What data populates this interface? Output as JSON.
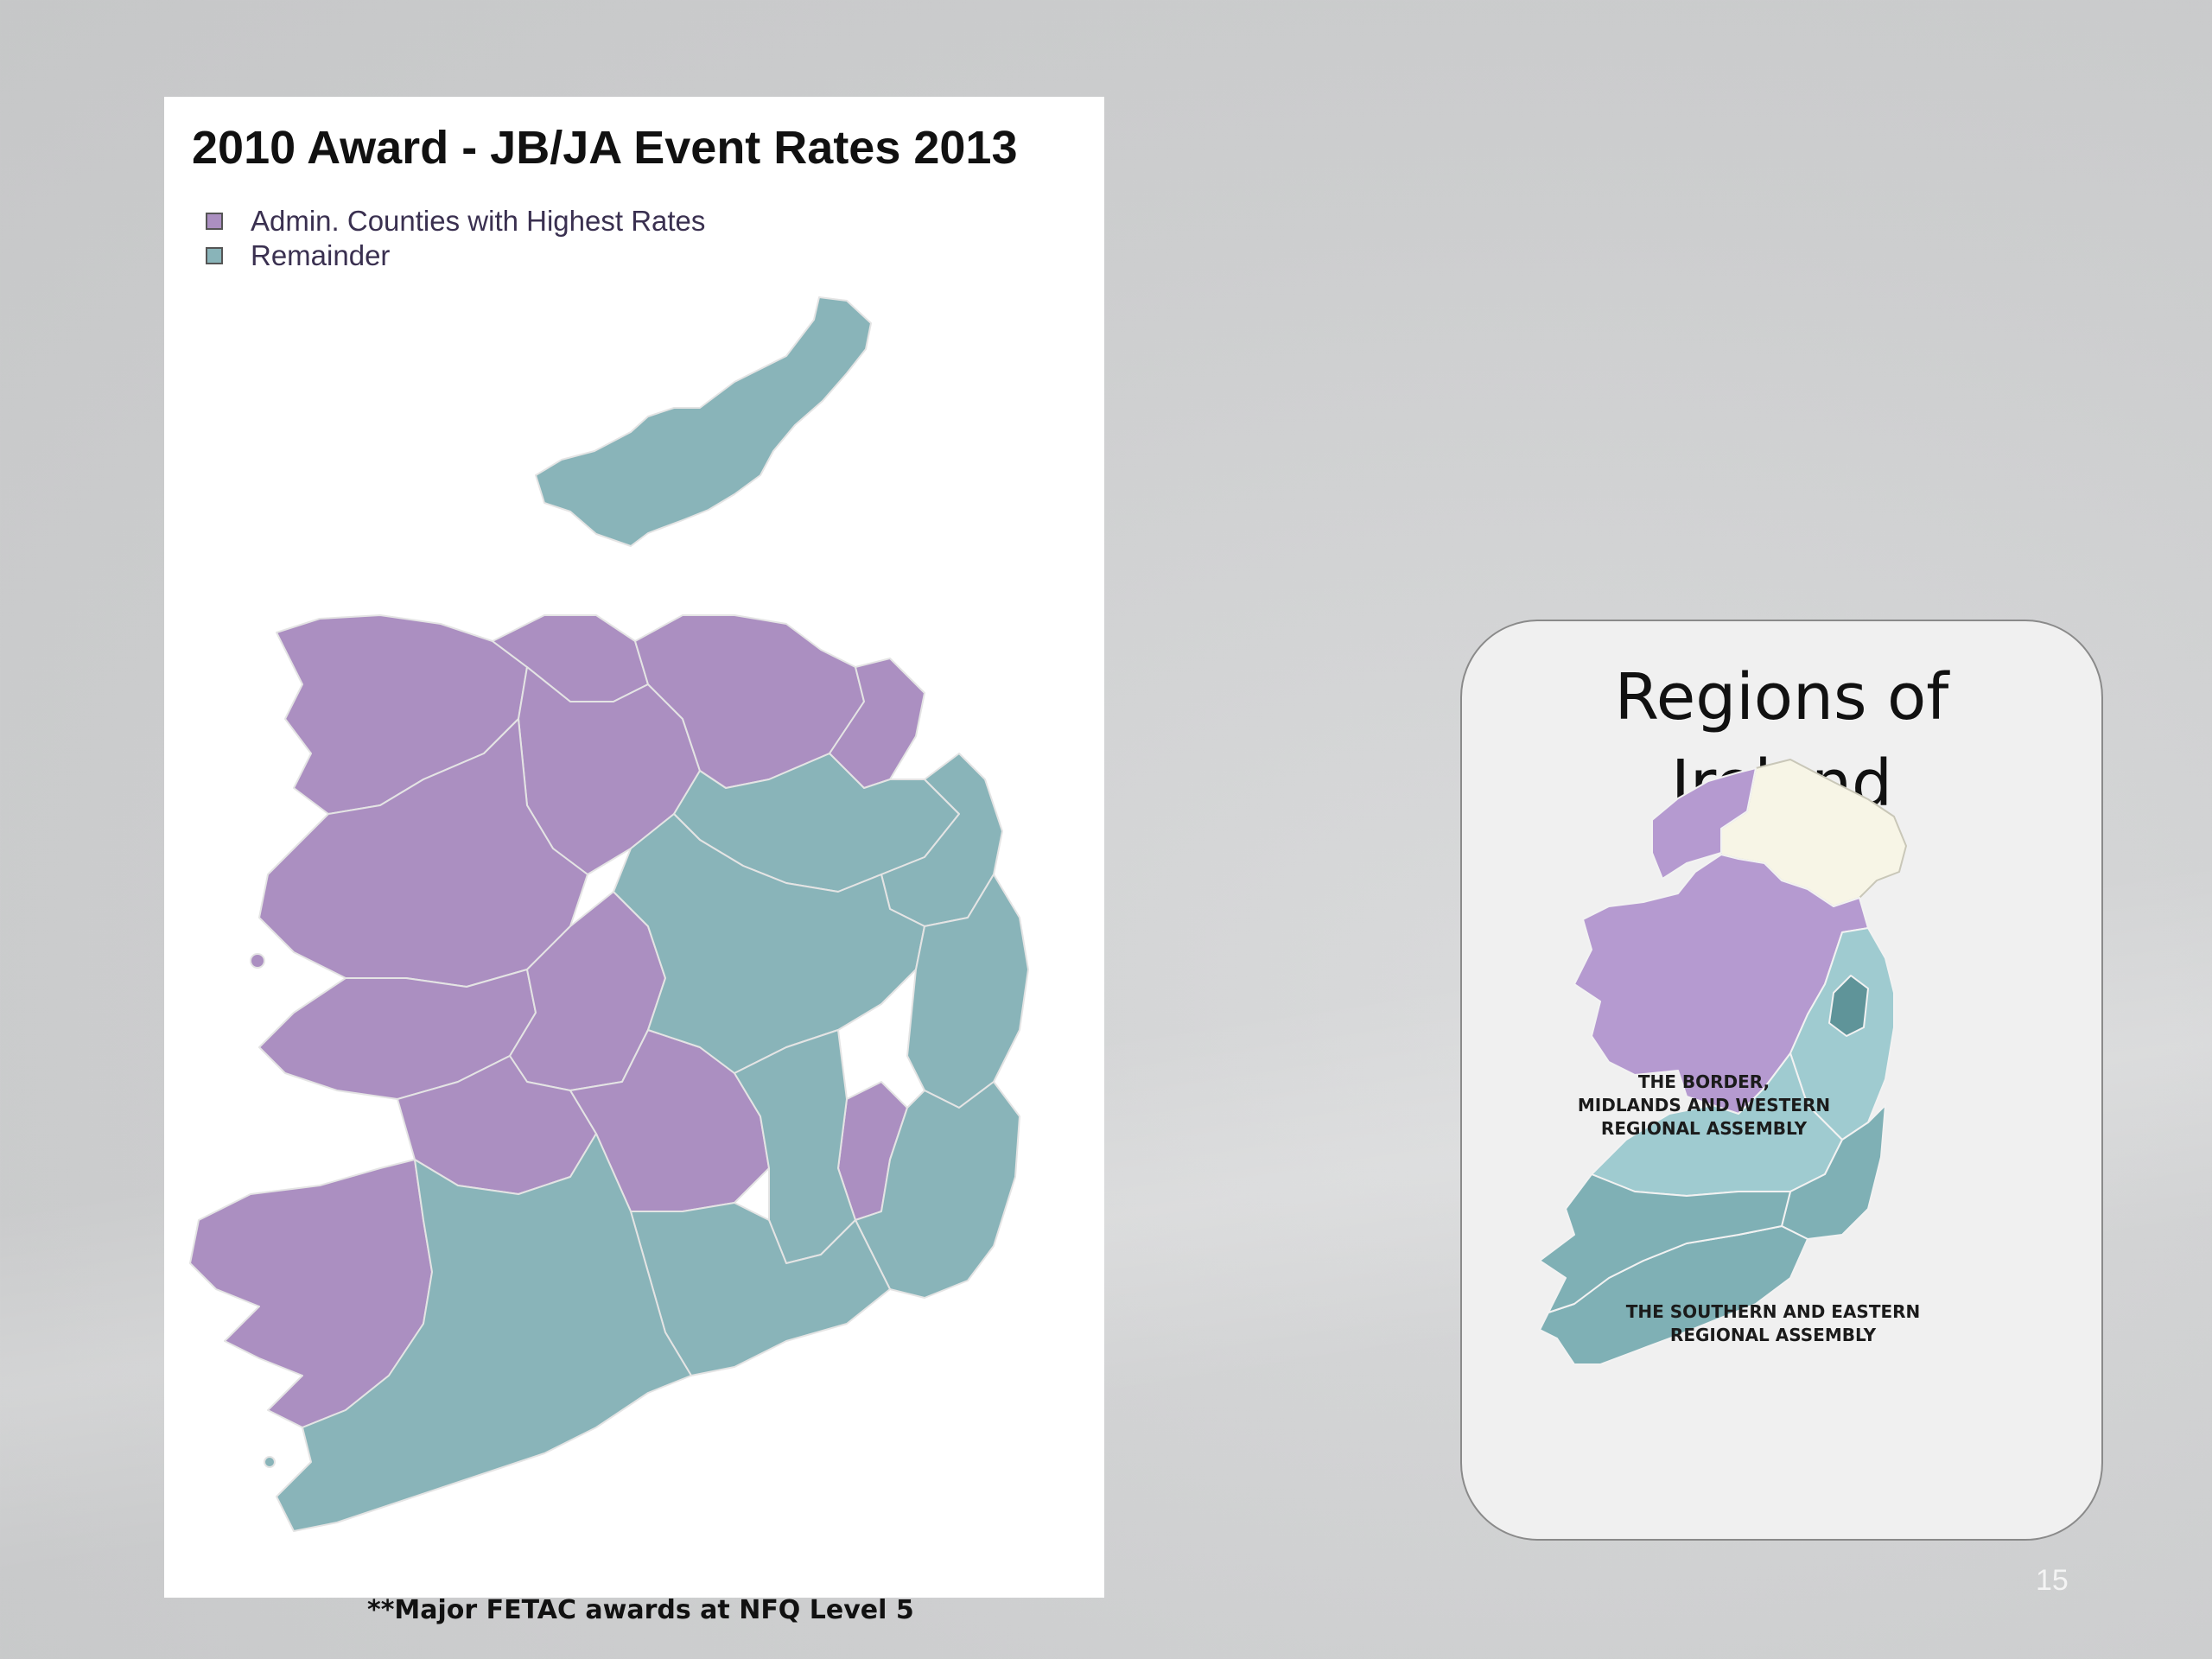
{
  "map": {
    "title": "2010 Award - JB/JA Event Rates 2013",
    "legend": [
      {
        "label": "Admin. Counties with Highest Rates",
        "color": "#ab8fc1"
      },
      {
        "label": "Remainder",
        "color": "#89b4b9"
      }
    ],
    "footnote": "**Major FETAC awards at NFQ Level 5"
  },
  "regions_card": {
    "title_line1": "Regions of",
    "title_line2": "Ireland",
    "bmw_label": [
      "THE BORDER,",
      "MIDLANDS AND WESTERN",
      "REGIONAL ASSEMBLY"
    ],
    "se_label": [
      "THE SOUTHERN AND EASTERN",
      "REGIONAL ASSEMBLY"
    ],
    "colors": {
      "bmw": "#b59ad0",
      "se_light": "#9fcbd0",
      "se_dark": "#7fb0b5",
      "dublin": "#5f9499",
      "northern_ireland": "#f7f5e6"
    }
  },
  "page_number": "15"
}
